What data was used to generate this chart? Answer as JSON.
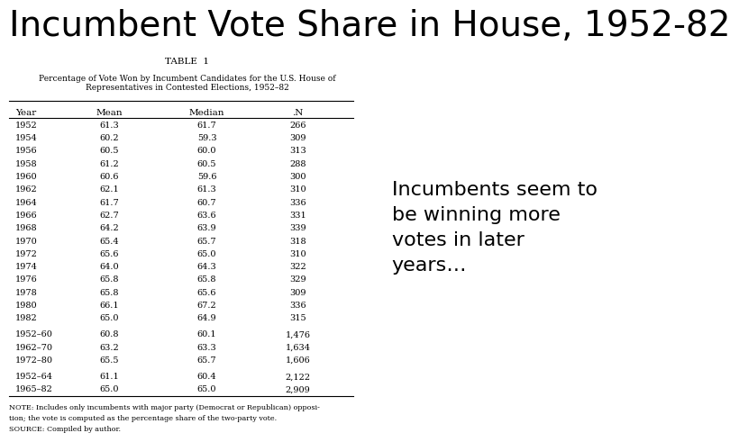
{
  "title": "Incumbent Vote Share in House, 1952-82",
  "table_title": "TABLE  1",
  "table_subtitle": "Percentage of Vote Won by Incumbent Candidates for the U.S. House of\nRepresentatives in Contested Elections, 1952–82",
  "col_headers": [
    "Year",
    "Mean",
    "Median",
    ".N"
  ],
  "rows": [
    [
      "1952",
      "61.3",
      "61.7",
      "266"
    ],
    [
      "1954",
      "60.2",
      "59.3",
      "309"
    ],
    [
      "1956",
      "60.5",
      "60.0",
      "313"
    ],
    [
      "1958",
      "61.2",
      "60.5",
      "288"
    ],
    [
      "1960",
      "60.6",
      "59.6",
      "300"
    ],
    [
      "1962",
      "62.1",
      "61.3",
      "310"
    ],
    [
      "1964",
      "61.7",
      "60.7",
      "336"
    ],
    [
      "1966",
      "62.7",
      "63.6",
      "331"
    ],
    [
      "1968",
      "64.2",
      "63.9",
      "339"
    ],
    [
      "1970",
      "65.4",
      "65.7",
      "318"
    ],
    [
      "1972",
      "65.6",
      "65.0",
      "310"
    ],
    [
      "1974",
      "64.0",
      "64.3",
      "322"
    ],
    [
      "1976",
      "65.8",
      "65.8",
      "329"
    ],
    [
      "1978",
      "65.8",
      "65.6",
      "309"
    ],
    [
      "1980",
      "66.1",
      "67.2",
      "336"
    ],
    [
      "1982",
      "65.0",
      "64.9",
      "315"
    ]
  ],
  "group_rows": [
    [
      "1952–60",
      "60.8",
      "60.1",
      "1,476"
    ],
    [
      "1962–70",
      "63.2",
      "63.3",
      "1,634"
    ],
    [
      "1972–80",
      "65.5",
      "65.7",
      "1,606"
    ]
  ],
  "group_rows2": [
    [
      "1952–64",
      "61.1",
      "60.4",
      "2,122"
    ],
    [
      "1965–82",
      "65.0",
      "65.0",
      "2,909"
    ]
  ],
  "note_line1": "NOTE: Includes only incumbents with major party (Democrat or Republican) opposi-",
  "note_line2": "tion; the vote is computed as the percentage share of the two-party vote.",
  "source": "SOURCE: Compiled by author.",
  "annotation": "Incumbents seem to\nbe winning more\nvotes in later\nyears…",
  "bg_color": "#ffffff",
  "title_fontsize": 28,
  "annotation_fontsize": 16
}
